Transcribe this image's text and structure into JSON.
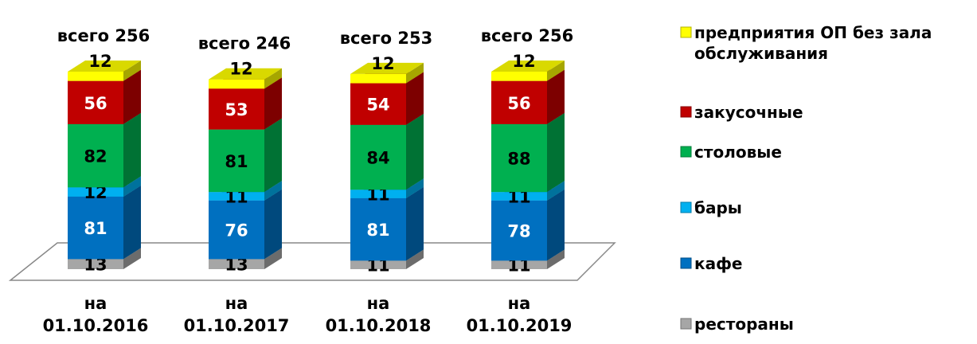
{
  "chart_data": {
    "type": "bar3d_stacked",
    "categories": [
      "на 01.10.2016",
      "на 01.10.2017",
      "на 01.10.2018",
      "на 01.10.2019"
    ],
    "total_labels": [
      "всего 256",
      "всего 246",
      "всего 253",
      "всего 256"
    ],
    "series": [
      {
        "name": "рестораны",
        "color": "#a6a6a6",
        "values": [
          13,
          13,
          11,
          11
        ]
      },
      {
        "name": "кафе",
        "color": "#0070c0",
        "values": [
          81,
          76,
          81,
          78
        ]
      },
      {
        "name": "бары",
        "color": "#00b0f0",
        "values": [
          12,
          11,
          11,
          11
        ]
      },
      {
        "name": "столовые",
        "color": "#00b050",
        "values": [
          82,
          81,
          84,
          88
        ]
      },
      {
        "name": "закусочные",
        "color": "#c00000",
        "values": [
          56,
          53,
          54,
          56
        ]
      },
      {
        "name": "предприятия ОП без зала обслуживания",
        "color": "#ffff00",
        "values": [
          12,
          12,
          12,
          12
        ]
      }
    ],
    "legend": "right"
  }
}
